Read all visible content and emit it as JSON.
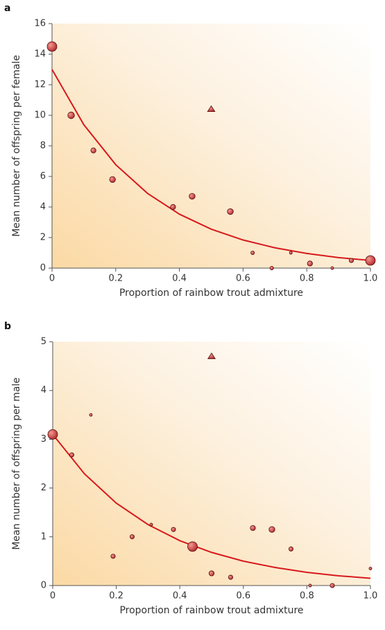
{
  "chart_data": [
    {
      "type": "scatter",
      "panel": "a",
      "xlabel": "Proportion of rainbow trout admixture",
      "ylabel": "Mean number of offspring per female",
      "xlim": [
        0,
        1
      ],
      "ylim": [
        0,
        16
      ],
      "xticks": [
        0,
        0.2,
        0.4,
        0.6,
        0.8,
        {
          "value": 1,
          "label": "1.0"
        }
      ],
      "yticks": [
        0,
        2,
        4,
        6,
        8,
        10,
        12,
        14,
        16
      ],
      "series": [
        {
          "kind": "points",
          "marker": "circle",
          "color": "#c0393b",
          "x": [
            0,
            0.06,
            0.13,
            0.19,
            0.38,
            0.44,
            0.56,
            0.63,
            0.69,
            0.75,
            0.81,
            0.88,
            0.94,
            1
          ],
          "values": [
            14.5,
            10,
            7.7,
            5.8,
            4,
            4.7,
            3.7,
            1,
            0,
            1,
            0.3,
            0,
            0.5,
            0.5
          ],
          "sizes": [
            5,
            3,
            2,
            2.5,
            2,
            2.5,
            2.5,
            1,
            1,
            0.5,
            2,
            0.5,
            1.5,
            5
          ]
        },
        {
          "kind": "points",
          "marker": "triangle",
          "color": "#c0393b",
          "x": [
            0.5
          ],
          "values": [
            10.4
          ],
          "sizes": [
            3
          ]
        },
        {
          "kind": "line",
          "color": "#d7191c",
          "x": [
            0,
            0.1,
            0.2,
            0.3,
            0.4,
            0.5,
            0.6,
            0.7,
            0.8,
            0.9,
            1
          ],
          "values": [
            13,
            9.38,
            6.77,
            4.89,
            3.53,
            2.55,
            1.84,
            1.33,
            0.96,
            0.69,
            0.5
          ]
        }
      ]
    },
    {
      "type": "scatter",
      "panel": "b",
      "xlabel": "Proportion of rainbow trout admixture",
      "ylabel": "Mean number of offspring per male",
      "xlim": [
        0,
        1
      ],
      "ylim": [
        0,
        5
      ],
      "xticks": [
        0,
        0.2,
        0.4,
        0.6,
        0.8,
        {
          "value": 1,
          "label": "1.0"
        }
      ],
      "yticks": [
        0,
        1,
        2,
        3,
        4,
        5
      ],
      "series": [
        {
          "kind": "points",
          "marker": "circle",
          "color": "#c0393b",
          "x": [
            0,
            0.06,
            0.12,
            0.19,
            0.25,
            0.31,
            0.38,
            0.44,
            0.5,
            0.56,
            0.63,
            0.69,
            0.75,
            0.81,
            0.88,
            1
          ],
          "values": [
            3.1,
            2.68,
            3.5,
            0.6,
            1,
            1.25,
            1.15,
            0.8,
            0.25,
            0.17,
            1.18,
            1.15,
            0.75,
            0,
            0,
            0.35
          ],
          "sizes": [
            5,
            1.5,
            0.5,
            1.5,
            1.5,
            0.5,
            1.5,
            5,
            2,
            1.5,
            2,
            2.5,
            1.5,
            0.5,
            1.5,
            0.5
          ]
        },
        {
          "kind": "points",
          "marker": "triangle",
          "color": "#c0393b",
          "x": [
            0.5
          ],
          "values": [
            4.7
          ],
          "sizes": [
            3
          ]
        },
        {
          "kind": "line",
          "color": "#d7191c",
          "x": [
            0,
            0.1,
            0.2,
            0.3,
            0.4,
            0.5,
            0.6,
            0.7,
            0.8,
            0.9,
            1
          ],
          "values": [
            3.1,
            2.29,
            1.69,
            1.25,
            0.92,
            0.68,
            0.5,
            0.37,
            0.27,
            0.2,
            0.15
          ]
        }
      ]
    }
  ]
}
